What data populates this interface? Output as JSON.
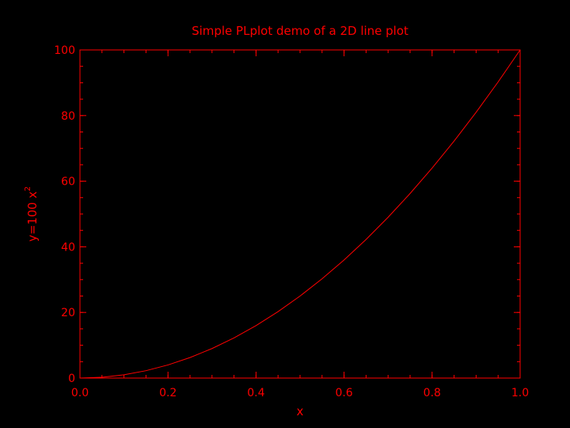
{
  "colors": {
    "background": "#000000",
    "foreground": "#ff0000"
  },
  "chart_data": {
    "type": "line",
    "title": "Simple PLplot demo of a 2D line plot",
    "xlabel": "x",
    "ylabel": "y=100 x",
    "ylabel_superscript": "2",
    "xlim": [
      0,
      1
    ],
    "ylim": [
      0,
      100
    ],
    "x_ticks": [
      "0.0",
      "0.2",
      "0.4",
      "0.6",
      "0.8",
      "1.0"
    ],
    "y_ticks": [
      "0",
      "20",
      "40",
      "60",
      "80",
      "100"
    ],
    "grid": false,
    "series": [
      {
        "x": [
          0,
          0.05,
          0.1,
          0.15,
          0.2,
          0.25,
          0.3,
          0.35,
          0.4,
          0.45,
          0.5,
          0.55,
          0.6,
          0.65,
          0.7,
          0.75,
          0.8,
          0.85,
          0.9,
          0.95,
          1.0
        ],
        "y": [
          0,
          0.25,
          1,
          2.25,
          4,
          6.25,
          9,
          12.25,
          16,
          20.25,
          25,
          30.25,
          36,
          42.25,
          49,
          56.25,
          64,
          72.25,
          81,
          90.25,
          100
        ]
      }
    ]
  }
}
